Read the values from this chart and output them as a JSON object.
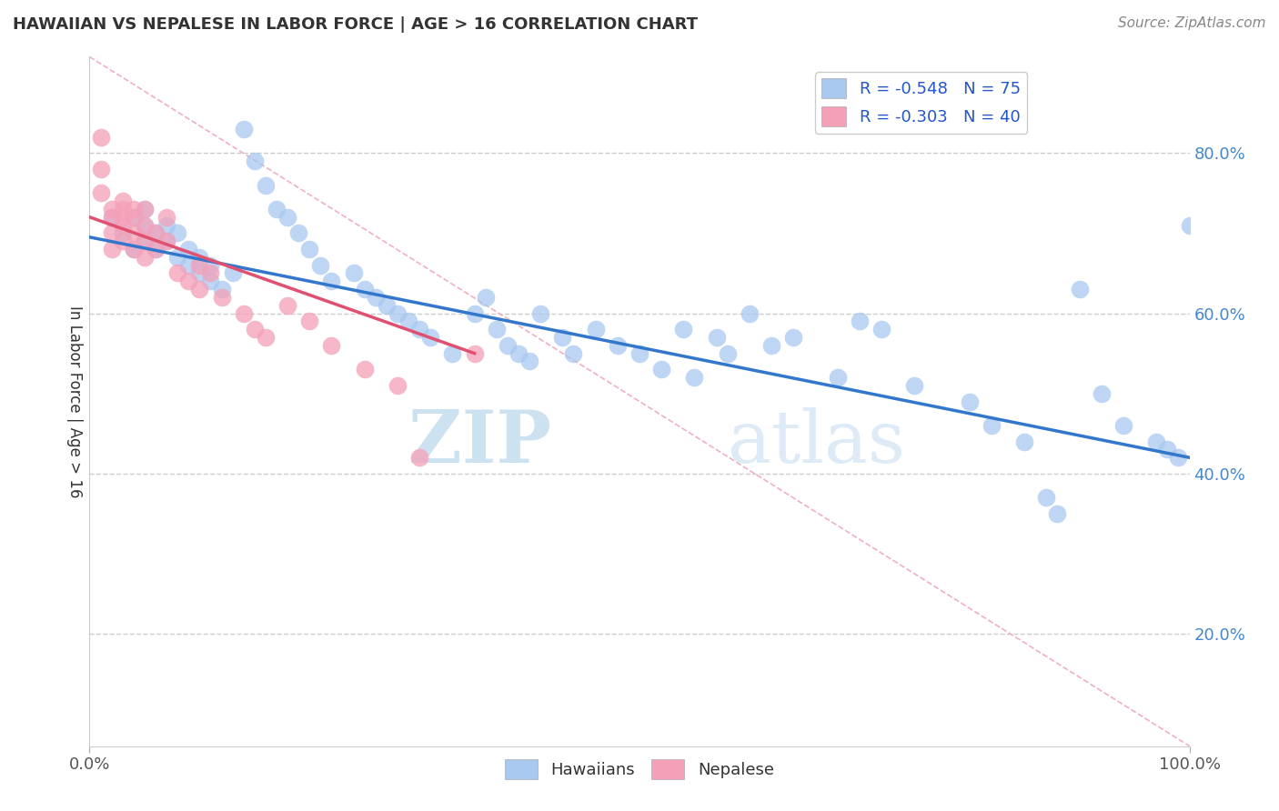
{
  "title": "HAWAIIAN VS NEPALESE IN LABOR FORCE | AGE > 16 CORRELATION CHART",
  "source_text": "Source: ZipAtlas.com",
  "ylabel": "In Labor Force | Age > 16",
  "ytick_labels": [
    "20.0%",
    "40.0%",
    "60.0%",
    "80.0%"
  ],
  "ytick_values": [
    0.2,
    0.4,
    0.6,
    0.8
  ],
  "xlim": [
    0.0,
    1.0
  ],
  "ylim": [
    0.06,
    0.92
  ],
  "hawaiian_color": "#a8c8f0",
  "nepalese_color": "#f4a0b8",
  "hawaiian_line_color": "#3377cc",
  "nepalese_line_color": "#e05070",
  "legend_R_hawaiian": "R = -0.548",
  "legend_N_hawaiian": "N = 75",
  "legend_R_nepalese": "R = -0.303",
  "legend_N_nepalese": "N = 40",
  "watermark_zip": "ZIP",
  "watermark_atlas": "atlas",
  "background_color": "#ffffff",
  "grid_color": "#cccccc",
  "title_color": "#333333",
  "diag_color": "#f0b0c0",
  "hawaiian_x": [
    0.02,
    0.03,
    0.04,
    0.04,
    0.05,
    0.05,
    0.05,
    0.06,
    0.06,
    0.07,
    0.07,
    0.08,
    0.08,
    0.09,
    0.09,
    0.1,
    0.1,
    0.11,
    0.11,
    0.12,
    0.13,
    0.14,
    0.15,
    0.16,
    0.17,
    0.18,
    0.19,
    0.2,
    0.21,
    0.22,
    0.24,
    0.25,
    0.26,
    0.27,
    0.28,
    0.29,
    0.3,
    0.31,
    0.33,
    0.35,
    0.36,
    0.37,
    0.38,
    0.39,
    0.4,
    0.41,
    0.43,
    0.44,
    0.46,
    0.48,
    0.5,
    0.52,
    0.54,
    0.55,
    0.57,
    0.58,
    0.6,
    0.62,
    0.64,
    0.68,
    0.7,
    0.72,
    0.75,
    0.8,
    0.82,
    0.85,
    0.87,
    0.88,
    0.9,
    0.92,
    0.94,
    0.97,
    0.98,
    0.99,
    1.0
  ],
  "hawaiian_y": [
    0.72,
    0.7,
    0.68,
    0.72,
    0.69,
    0.71,
    0.73,
    0.7,
    0.68,
    0.71,
    0.69,
    0.67,
    0.7,
    0.66,
    0.68,
    0.65,
    0.67,
    0.64,
    0.66,
    0.63,
    0.65,
    0.83,
    0.79,
    0.76,
    0.73,
    0.72,
    0.7,
    0.68,
    0.66,
    0.64,
    0.65,
    0.63,
    0.62,
    0.61,
    0.6,
    0.59,
    0.58,
    0.57,
    0.55,
    0.6,
    0.62,
    0.58,
    0.56,
    0.55,
    0.54,
    0.6,
    0.57,
    0.55,
    0.58,
    0.56,
    0.55,
    0.53,
    0.58,
    0.52,
    0.57,
    0.55,
    0.6,
    0.56,
    0.57,
    0.52,
    0.59,
    0.58,
    0.51,
    0.49,
    0.46,
    0.44,
    0.37,
    0.35,
    0.63,
    0.5,
    0.46,
    0.44,
    0.43,
    0.42,
    0.71
  ],
  "nepalese_x": [
    0.01,
    0.01,
    0.01,
    0.02,
    0.02,
    0.02,
    0.02,
    0.03,
    0.03,
    0.03,
    0.03,
    0.03,
    0.04,
    0.04,
    0.04,
    0.04,
    0.05,
    0.05,
    0.05,
    0.05,
    0.06,
    0.06,
    0.07,
    0.07,
    0.08,
    0.09,
    0.1,
    0.1,
    0.11,
    0.12,
    0.14,
    0.15,
    0.16,
    0.18,
    0.2,
    0.22,
    0.25,
    0.28,
    0.3,
    0.35
  ],
  "nepalese_y": [
    0.82,
    0.78,
    0.75,
    0.73,
    0.7,
    0.72,
    0.68,
    0.74,
    0.71,
    0.73,
    0.69,
    0.72,
    0.73,
    0.7,
    0.72,
    0.68,
    0.71,
    0.73,
    0.69,
    0.67,
    0.7,
    0.68,
    0.72,
    0.69,
    0.65,
    0.64,
    0.66,
    0.63,
    0.65,
    0.62,
    0.6,
    0.58,
    0.57,
    0.61,
    0.59,
    0.56,
    0.53,
    0.51,
    0.42,
    0.55
  ],
  "haw_trend_x0": 0.0,
  "haw_trend_y0": 0.695,
  "haw_trend_x1": 1.0,
  "haw_trend_y1": 0.42,
  "nep_trend_x0": 0.0,
  "nep_trend_y0": 0.72,
  "nep_trend_x1": 0.35,
  "nep_trend_y1": 0.55
}
